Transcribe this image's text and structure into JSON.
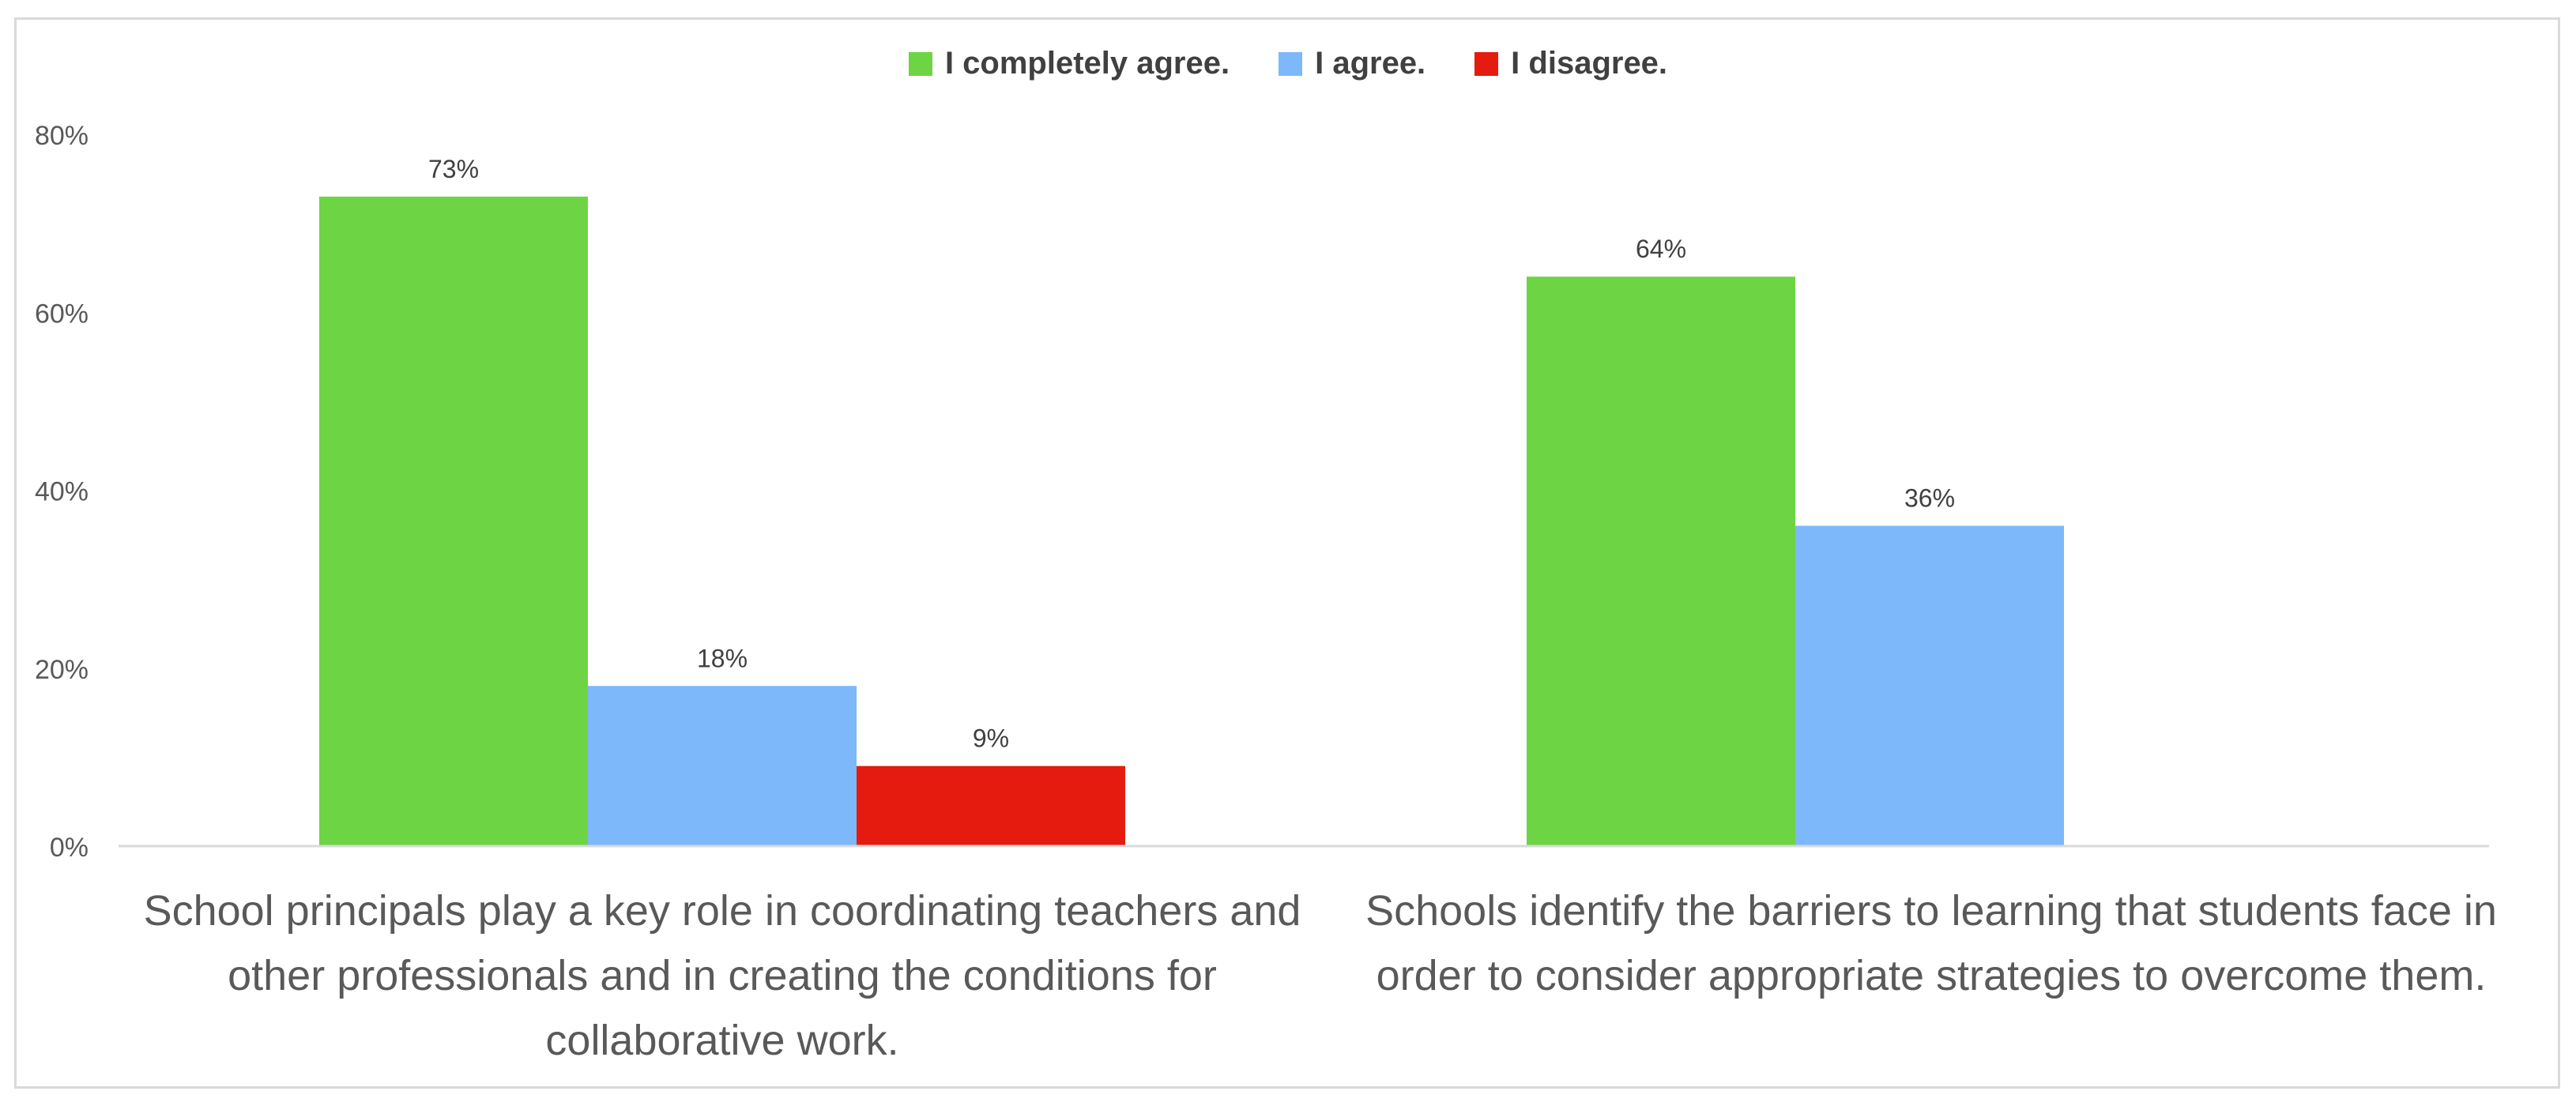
{
  "chart_data": {
    "type": "bar",
    "categories": [
      "School principals play a key role in coordinating teachers and other professionals and in creating the conditions for collaborative work.",
      "Schools identify the barriers to learning that students face in order to consider appropriate strategies to overcome them."
    ],
    "series": [
      {
        "name": "I completely agree.",
        "color": "#6dd444",
        "values": [
          73,
          64
        ]
      },
      {
        "name": "I agree.",
        "color": "#7db8fa",
        "values": [
          18,
          36
        ]
      },
      {
        "name": "I disagree.",
        "color": "#e41b0e",
        "values": [
          9,
          null
        ]
      }
    ],
    "data_labels": [
      [
        "73%",
        "64%"
      ],
      [
        "18%",
        "36%"
      ],
      [
        "9%",
        ""
      ]
    ],
    "y_ticks": [
      0,
      20,
      40,
      60,
      80
    ],
    "y_tick_labels": [
      "0%",
      "20%",
      "40%",
      "60%",
      "80%"
    ],
    "ylim": [
      0,
      80
    ],
    "legend_position": "top-center",
    "grid": false,
    "title": "",
    "xlabel": "",
    "ylabel": ""
  }
}
